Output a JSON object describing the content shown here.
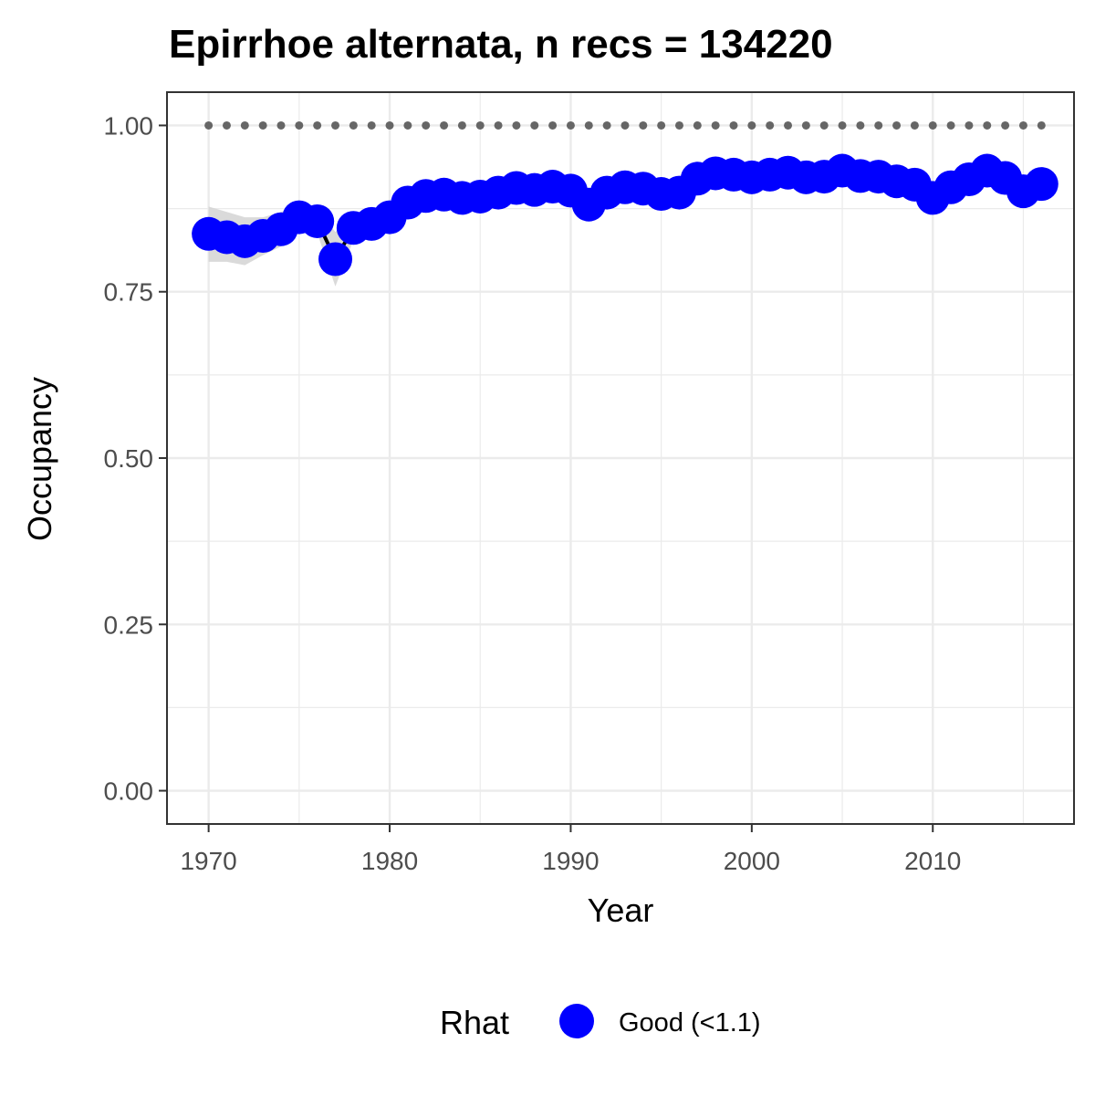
{
  "chart_data": {
    "type": "line",
    "title": "Epirrhoe alternata, n recs = 134220",
    "xlabel": "Year",
    "ylabel": "Occupancy",
    "xlim": [
      1967.7,
      2017.8
    ],
    "ylim": [
      -0.05,
      1.05
    ],
    "x_ticks": [
      1970,
      1980,
      1990,
      2000,
      2010
    ],
    "x_tick_labels": [
      "1970",
      "1980",
      "1990",
      "2000",
      "2010"
    ],
    "y_ticks": [
      0,
      0.25,
      0.5,
      0.75,
      1.0
    ],
    "y_tick_labels": [
      "0.00",
      "0.25",
      "0.50",
      "0.75",
      "1.00"
    ],
    "grid": true,
    "legend_position": "bottom",
    "legend_title": "Rhat",
    "colors": {
      "point": "#0000ff",
      "ribbon": "#d3d3d3",
      "line": "#000000",
      "reference": "#666666",
      "grid": "#ebebeb",
      "border": "#333333"
    },
    "series": [
      {
        "name": "Good (<1.1)",
        "x": [
          1970,
          1971,
          1972,
          1973,
          1974,
          1975,
          1976,
          1977,
          1978,
          1979,
          1980,
          1981,
          1982,
          1983,
          1984,
          1985,
          1986,
          1987,
          1988,
          1989,
          1990,
          1991,
          1992,
          1993,
          1994,
          1995,
          1996,
          1997,
          1998,
          1999,
          2000,
          2001,
          2002,
          2003,
          2004,
          2005,
          2006,
          2007,
          2008,
          2009,
          2010,
          2011,
          2012,
          2013,
          2014,
          2015,
          2016
        ],
        "y": [
          0.837,
          0.832,
          0.826,
          0.834,
          0.844,
          0.862,
          0.856,
          0.799,
          0.846,
          0.852,
          0.862,
          0.884,
          0.894,
          0.896,
          0.891,
          0.893,
          0.899,
          0.906,
          0.903,
          0.908,
          0.902,
          0.881,
          0.899,
          0.907,
          0.905,
          0.897,
          0.899,
          0.92,
          0.928,
          0.926,
          0.922,
          0.926,
          0.929,
          0.922,
          0.923,
          0.932,
          0.924,
          0.923,
          0.916,
          0.911,
          0.891,
          0.907,
          0.919,
          0.932,
          0.921,
          0.901,
          0.912
        ],
        "lower": [
          0.795,
          0.795,
          0.79,
          0.805,
          0.818,
          0.842,
          0.838,
          0.758,
          0.828,
          0.834,
          0.845,
          0.87,
          0.882,
          0.884,
          0.878,
          0.88,
          0.886,
          0.894,
          0.891,
          0.897,
          0.89,
          0.868,
          0.887,
          0.896,
          0.893,
          0.885,
          0.887,
          0.909,
          0.917,
          0.915,
          0.911,
          0.915,
          0.918,
          0.911,
          0.912,
          0.921,
          0.913,
          0.912,
          0.905,
          0.9,
          0.879,
          0.895,
          0.907,
          0.92,
          0.909,
          0.888,
          0.898
        ],
        "upper": [
          0.878,
          0.87,
          0.862,
          0.862,
          0.87,
          0.88,
          0.874,
          0.84,
          0.864,
          0.87,
          0.879,
          0.898,
          0.906,
          0.908,
          0.904,
          0.906,
          0.912,
          0.918,
          0.915,
          0.919,
          0.914,
          0.894,
          0.911,
          0.918,
          0.917,
          0.909,
          0.911,
          0.931,
          0.939,
          0.937,
          0.933,
          0.937,
          0.94,
          0.933,
          0.934,
          0.943,
          0.935,
          0.934,
          0.927,
          0.922,
          0.903,
          0.919,
          0.931,
          0.944,
          0.933,
          0.914,
          0.926
        ]
      }
    ],
    "reference_line": {
      "y": 1.0,
      "x": [
        1970,
        1971,
        1972,
        1973,
        1974,
        1975,
        1976,
        1977,
        1978,
        1979,
        1980,
        1981,
        1982,
        1983,
        1984,
        1985,
        1986,
        1987,
        1988,
        1989,
        1990,
        1991,
        1992,
        1993,
        1994,
        1995,
        1996,
        1997,
        1998,
        1999,
        2000,
        2001,
        2002,
        2003,
        2004,
        2005,
        2006,
        2007,
        2008,
        2009,
        2010,
        2011,
        2012,
        2013,
        2014,
        2015,
        2016
      ]
    }
  }
}
